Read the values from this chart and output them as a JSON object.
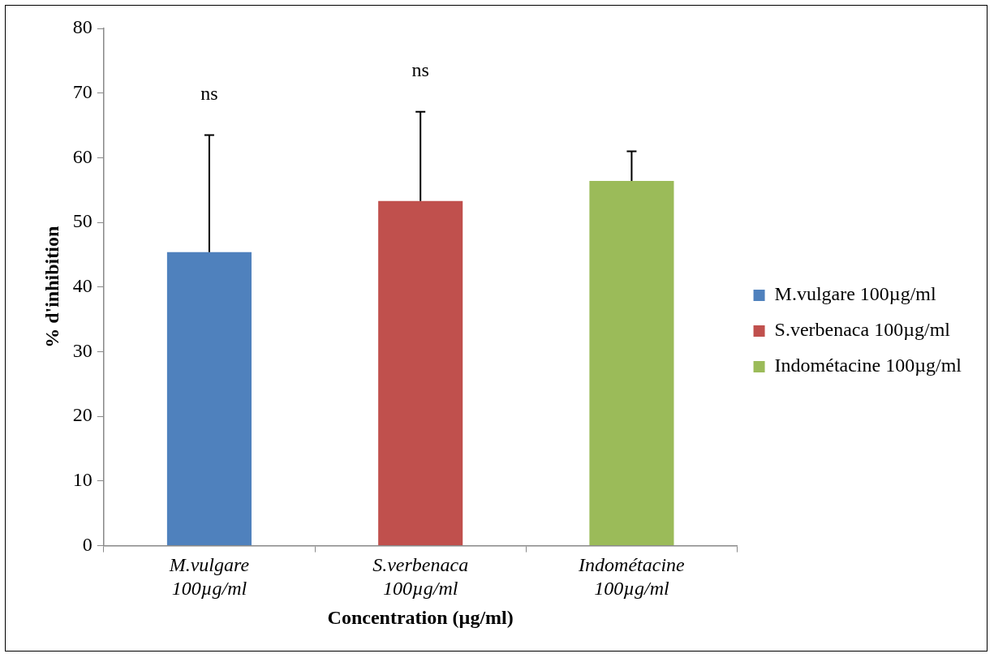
{
  "chart_data": {
    "type": "bar",
    "xlabel": "Concentration (µg/ml)",
    "ylabel": "% d'inhibition",
    "categories": [
      "M.vulgare 100µg/ml",
      "S.verbenaca 100µg/ml",
      "Indométacine 100µg/ml"
    ],
    "series": [
      {
        "name": "M.vulgare 100µg/ml",
        "color": "#4f81bd",
        "values": [
          45.4,
          null,
          null
        ],
        "errors": [
          [
            45.4,
            63.5
          ],
          null,
          null
        ]
      },
      {
        "name": "S.verbenaca 100µg/ml",
        "color": "#c0504d",
        "values": [
          null,
          53.3,
          null
        ],
        "errors": [
          null,
          [
            53.3,
            67.1
          ],
          null
        ]
      },
      {
        "name": "Indométacine 100µg/ml",
        "color": "#9bbb59",
        "values": [
          null,
          null,
          56.4
        ],
        "errors": [
          null,
          null,
          [
            56.4,
            61.0
          ]
        ]
      }
    ],
    "ylim": [
      0,
      80
    ],
    "yticks": [
      0,
      10,
      20,
      30,
      40,
      50,
      60,
      70,
      80
    ],
    "grid": false,
    "legend": "right",
    "annotations": [
      "ns",
      "ns"
    ]
  }
}
